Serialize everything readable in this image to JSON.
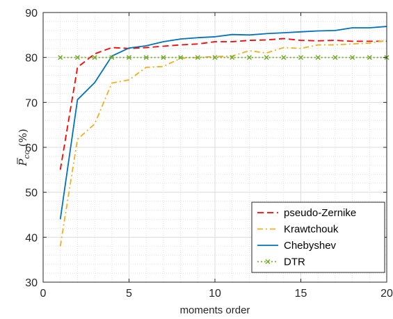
{
  "chart_data": {
    "type": "line",
    "xlabel": "moments order",
    "ylabel": {
      "symbol": "P",
      "subscript": "cc",
      "unit": "(%)"
    },
    "xlim": [
      0,
      20
    ],
    "ylim": [
      30,
      90
    ],
    "xticks": [
      0,
      5,
      10,
      15,
      20
    ],
    "yticks": [
      30,
      40,
      50,
      60,
      70,
      80,
      90
    ],
    "grid": true,
    "minor_grid": true,
    "legend_position": "bottom-right",
    "x": [
      1,
      2,
      3,
      4,
      5,
      6,
      7,
      8,
      9,
      10,
      11,
      12,
      13,
      14,
      15,
      16,
      17,
      18,
      19,
      20
    ],
    "series": [
      {
        "name": "pseudo-Zernike",
        "color": "#ff0000",
        "style": "dashed",
        "marker": "none",
        "values": [
          55.0,
          77.8,
          80.8,
          82.2,
          82.0,
          82.2,
          82.5,
          82.8,
          83.0,
          83.5,
          83.5,
          83.8,
          83.9,
          84.2,
          83.8,
          83.7,
          83.8,
          83.6,
          83.6,
          83.6
        ]
      },
      {
        "name": "Krawtchouk",
        "color": "#edb120",
        "style": "dashdot",
        "marker": "none",
        "values": [
          38.0,
          61.8,
          65.2,
          74.3,
          75.0,
          77.8,
          78.0,
          79.8,
          80.0,
          80.2,
          80.3,
          81.5,
          81.0,
          82.2,
          82.0,
          82.8,
          82.8,
          83.0,
          83.2,
          83.8
        ]
      },
      {
        "name": "Chebyshev",
        "color": "#0072bd",
        "style": "solid",
        "marker": "none",
        "values": [
          44.0,
          70.6,
          74.4,
          80.3,
          82.1,
          82.6,
          83.5,
          84.1,
          84.4,
          84.6,
          85.1,
          85.0,
          85.3,
          85.5,
          85.7,
          85.9,
          86.0,
          86.6,
          86.6,
          86.9
        ]
      },
      {
        "name": "DTR",
        "color": "#77ac30",
        "style": "dotted",
        "marker": "x",
        "values": [
          80,
          80,
          80,
          80,
          80,
          80,
          80,
          80,
          80,
          80,
          80,
          80,
          80,
          80,
          80,
          80,
          80,
          80,
          80,
          80
        ]
      }
    ]
  }
}
